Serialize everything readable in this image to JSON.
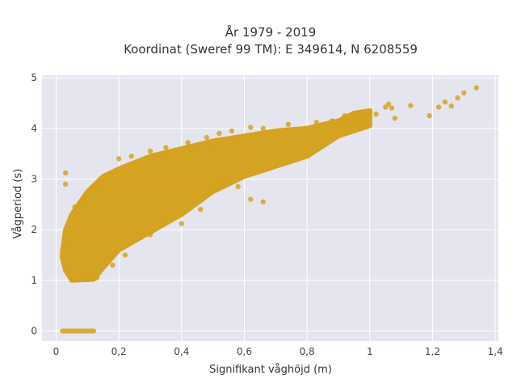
{
  "chart_data": {
    "type": "scatter",
    "title_lines": [
      "År 1979 - 2019",
      "Koordinat (Sweref 99 TM): E 349614, N 6208559"
    ],
    "xlabel": "Signifikant våghöjd (m)",
    "ylabel": "Vågperiod (s)",
    "xlim": [
      -0.045,
      1.41
    ],
    "ylim": [
      -0.2,
      5.05
    ],
    "x_ticks": [
      0,
      0.2,
      0.4,
      0.6,
      0.8,
      1,
      1.2,
      1.4
    ],
    "x_tick_labels": [
      "0",
      "0,2",
      "0,4",
      "0,6",
      "0,8",
      "1",
      "1,2",
      "1,4"
    ],
    "y_ticks": [
      0,
      1,
      2,
      3,
      4,
      5
    ],
    "y_tick_labels": [
      "0",
      "1",
      "2",
      "3",
      "4",
      "5"
    ],
    "grid": true,
    "marker_color": "#D4A017",
    "background_color": "#E5E5EF",
    "grid_color": "#FFFFFF",
    "density_outline": [
      [
        0.02,
        1.55
      ],
      [
        0.03,
        2.0
      ],
      [
        0.05,
        2.3
      ],
      [
        0.1,
        2.75
      ],
      [
        0.15,
        3.05
      ],
      [
        0.2,
        3.2
      ],
      [
        0.3,
        3.45
      ],
      [
        0.4,
        3.6
      ],
      [
        0.5,
        3.75
      ],
      [
        0.6,
        3.85
      ],
      [
        0.7,
        3.95
      ],
      [
        0.8,
        4.0
      ],
      [
        0.9,
        4.15
      ],
      [
        0.95,
        4.3
      ],
      [
        1.0,
        4.35
      ],
      [
        1.0,
        4.05
      ],
      [
        0.9,
        3.85
      ],
      [
        0.8,
        3.45
      ],
      [
        0.7,
        3.25
      ],
      [
        0.6,
        3.05
      ],
      [
        0.5,
        2.75
      ],
      [
        0.4,
        2.3
      ],
      [
        0.3,
        1.95
      ],
      [
        0.2,
        1.6
      ],
      [
        0.15,
        1.25
      ],
      [
        0.12,
        1.02
      ],
      [
        0.05,
        1.0
      ],
      [
        0.03,
        1.2
      ],
      [
        0.02,
        1.45
      ]
    ],
    "outlier_points": [
      [
        0.03,
        3.12
      ],
      [
        0.03,
        2.9
      ],
      [
        0.06,
        2.45
      ],
      [
        0.09,
        2.6
      ],
      [
        0.2,
        3.4
      ],
      [
        0.24,
        3.45
      ],
      [
        0.3,
        3.55
      ],
      [
        0.35,
        3.62
      ],
      [
        0.42,
        3.72
      ],
      [
        0.48,
        3.82
      ],
      [
        0.52,
        3.9
      ],
      [
        0.56,
        3.95
      ],
      [
        0.62,
        4.02
      ],
      [
        0.66,
        4.0
      ],
      [
        0.74,
        4.08
      ],
      [
        0.88,
        4.15
      ],
      [
        0.92,
        4.25
      ],
      [
        0.96,
        4.3
      ],
      [
        1.0,
        4.32
      ],
      [
        1.02,
        4.28
      ],
      [
        1.05,
        4.42
      ],
      [
        1.06,
        4.48
      ],
      [
        1.07,
        4.4
      ],
      [
        1.08,
        4.2
      ],
      [
        1.13,
        4.45
      ],
      [
        1.19,
        4.25
      ],
      [
        1.22,
        4.42
      ],
      [
        1.24,
        4.52
      ],
      [
        1.26,
        4.44
      ],
      [
        1.28,
        4.6
      ],
      [
        1.3,
        4.7
      ],
      [
        1.34,
        4.8
      ],
      [
        0.99,
        4.13
      ],
      [
        0.94,
        4.05
      ],
      [
        0.83,
        4.12
      ],
      [
        0.66,
        2.55
      ],
      [
        0.62,
        2.6
      ],
      [
        0.58,
        2.85
      ],
      [
        0.46,
        2.4
      ],
      [
        0.4,
        2.12
      ],
      [
        0.3,
        1.9
      ],
      [
        0.22,
        1.5
      ],
      [
        0.18,
        1.3
      ],
      [
        0.13,
        1.05
      ],
      [
        0.1,
        1.02
      ]
    ],
    "zero_period_band": {
      "x_start": 0.02,
      "x_end": 0.12,
      "y": 0
    }
  }
}
